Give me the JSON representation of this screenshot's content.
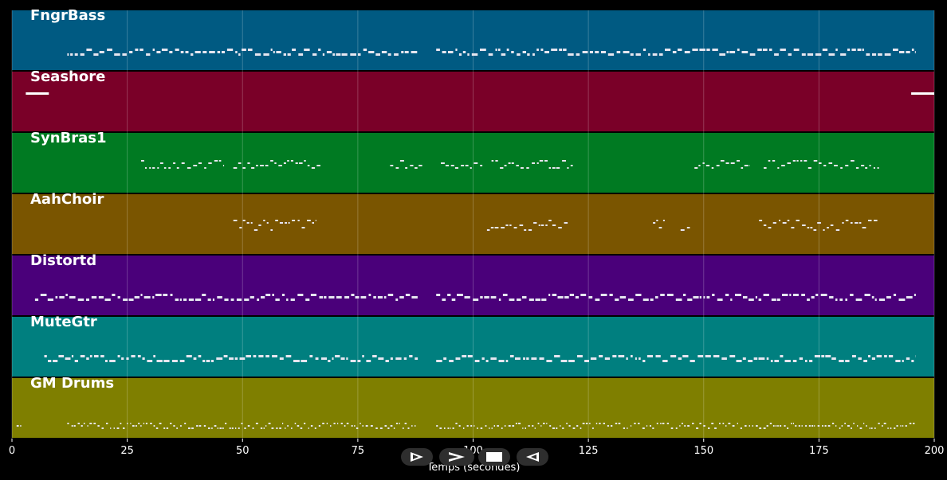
{
  "app": {
    "xlabel": "Temps (secondes)"
  },
  "timeline": {
    "min": 0,
    "max": 200,
    "ticks": [
      "0",
      "25",
      "50",
      "75",
      "100",
      "125",
      "150",
      "175",
      "200"
    ],
    "tick_values": [
      0,
      25,
      50,
      75,
      100,
      125,
      150,
      175,
      200
    ]
  },
  "tracks": [
    {
      "name": "FngrBass",
      "color": "#005a82",
      "pattern": "dense",
      "segments": [
        [
          12,
          88
        ],
        [
          92,
          196
        ]
      ]
    },
    {
      "name": "Seashore",
      "color": "#7a0028",
      "pattern": "sustain",
      "segments": [
        [
          3,
          8
        ],
        [
          195,
          200
        ]
      ]
    },
    {
      "name": "SynBras1",
      "color": "#007a22",
      "pattern": "phrase",
      "segments": [
        [
          28,
          46
        ],
        [
          48,
          67
        ],
        [
          82,
          89
        ],
        [
          93,
          102
        ],
        [
          104,
          122
        ],
        [
          148,
          160
        ],
        [
          163,
          188
        ]
      ]
    },
    {
      "name": "AahChoir",
      "color": "#7a5500",
      "pattern": "chord",
      "segments": [
        [
          48,
          66
        ],
        [
          103,
          121
        ],
        [
          139,
          142
        ],
        [
          145,
          147
        ],
        [
          162,
          188
        ]
      ]
    },
    {
      "name": "Distortd",
      "color": "#4a007a",
      "pattern": "dense",
      "segments": [
        [
          5,
          88
        ],
        [
          92,
          196
        ]
      ]
    },
    {
      "name": "MuteGtr",
      "color": "#007f7f",
      "pattern": "dense",
      "segments": [
        [
          7,
          88
        ],
        [
          92,
          196
        ]
      ]
    },
    {
      "name": "GM Drums",
      "color": "#7f7f00",
      "pattern": "drums",
      "segments": [
        [
          1,
          2
        ],
        [
          12,
          88
        ],
        [
          92,
          196
        ]
      ]
    }
  ],
  "transport": {
    "buttons": [
      {
        "name": "play-icon"
      },
      {
        "name": "fast-forward-icon"
      },
      {
        "name": "stop-icon"
      },
      {
        "name": "rewind-icon"
      }
    ]
  }
}
